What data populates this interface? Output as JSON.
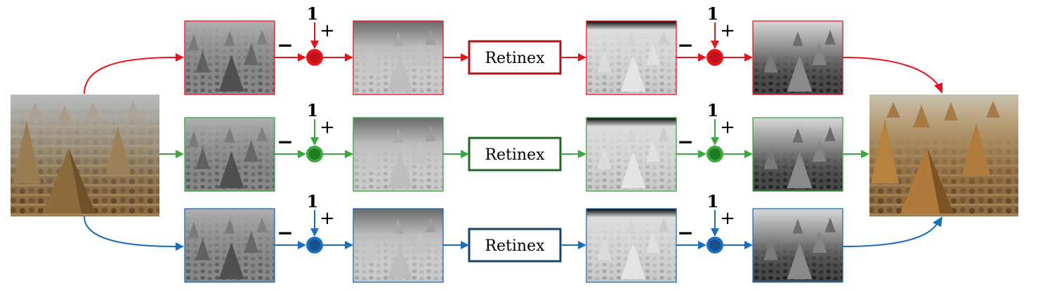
{
  "channels": [
    {
      "id": "red",
      "color": "#e8141c",
      "box_color": "#b01018",
      "dot_color": "#e8141c",
      "dot_inner": "#c0101a"
    },
    {
      "id": "green",
      "color": "#3aa83a",
      "box_color": "#1e6b22",
      "dot_color": "#3aa83a",
      "dot_inner": "#207a24"
    },
    {
      "id": "blue",
      "color": "#1a6ec0",
      "box_color": "#17426e",
      "dot_color": "#1a6ec0",
      "dot_inner": "#1a4f8a"
    }
  ],
  "labels": {
    "retinex": "Retinex",
    "one": "1",
    "plus": "+",
    "minus": "−"
  },
  "input_image": {
    "alt": "hazy field of haystacks (input)"
  },
  "output_image": {
    "alt": "dehazed field of haystacks (output)"
  }
}
